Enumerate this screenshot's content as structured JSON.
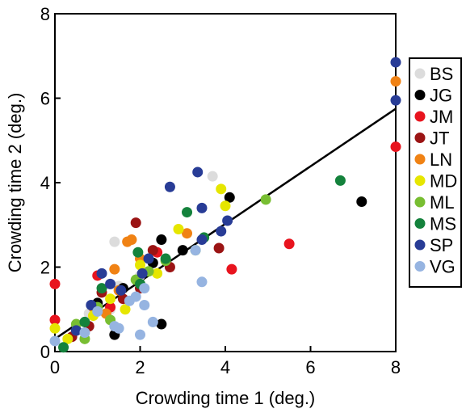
{
  "chart_data": {
    "type": "scatter",
    "xlabel": "Crowding time 1 (deg.)",
    "ylabel": "Crowding time 2 (deg.)",
    "xlim": [
      0,
      8
    ],
    "ylim": [
      0,
      8
    ],
    "xticks": [
      0,
      2,
      4,
      6,
      8
    ],
    "yticks": [
      0,
      2,
      4,
      6,
      8
    ],
    "xtick_labels": [
      "0",
      "2",
      "4",
      "6",
      "8"
    ],
    "ytick_labels": [
      "0",
      "2",
      "4",
      "6",
      "8"
    ],
    "grid": false,
    "legend_position": "right",
    "fit_line": {
      "x": [
        0,
        8
      ],
      "y": [
        0.3,
        5.75
      ]
    },
    "series": [
      {
        "name": "BS",
        "color": "#dcdcdc",
        "points": [
          [
            1.4,
            2.6
          ],
          [
            3.7,
            4.15
          ],
          [
            1.3,
            1.0
          ],
          [
            0.8,
            0.9
          ],
          [
            1.5,
            1.55
          ],
          [
            2.0,
            1.8
          ]
        ]
      },
      {
        "name": "JG",
        "color": "#000000",
        "points": [
          [
            7.2,
            3.55
          ],
          [
            4.1,
            3.65
          ],
          [
            2.5,
            2.65
          ],
          [
            2.3,
            2.1
          ],
          [
            1.6,
            1.5
          ],
          [
            1.0,
            1.15
          ],
          [
            2.5,
            0.65
          ],
          [
            1.4,
            0.4
          ],
          [
            3.0,
            2.4
          ],
          [
            0.5,
            0.5
          ]
        ]
      },
      {
        "name": "JM",
        "color": "#e8141e",
        "points": [
          [
            0.0,
            1.6
          ],
          [
            0.0,
            0.75
          ],
          [
            8.0,
            4.85
          ],
          [
            5.5,
            2.55
          ],
          [
            4.15,
            1.95
          ],
          [
            2.4,
            2.35
          ],
          [
            1.0,
            1.8
          ],
          [
            1.3,
            1.05
          ]
        ]
      },
      {
        "name": "JT",
        "color": "#9b1414",
        "points": [
          [
            1.9,
            3.05
          ],
          [
            2.3,
            2.4
          ],
          [
            3.85,
            2.45
          ],
          [
            1.6,
            1.25
          ],
          [
            0.8,
            0.6
          ],
          [
            2.7,
            2.0
          ],
          [
            1.1,
            1.4
          ],
          [
            0.4,
            0.35
          ],
          [
            2.0,
            1.5
          ]
        ]
      },
      {
        "name": "LN",
        "color": "#f08214",
        "points": [
          [
            8.0,
            6.4
          ],
          [
            1.4,
            1.95
          ],
          [
            1.8,
            2.65
          ],
          [
            1.7,
            2.6
          ],
          [
            3.1,
            2.8
          ],
          [
            1.5,
            1.45
          ],
          [
            0.9,
            1.05
          ],
          [
            2.0,
            2.2
          ],
          [
            1.2,
            0.9
          ]
        ]
      },
      {
        "name": "MD",
        "color": "#e6e600",
        "points": [
          [
            3.9,
            3.85
          ],
          [
            4.0,
            3.45
          ],
          [
            0.0,
            0.55
          ],
          [
            2.0,
            2.05
          ],
          [
            1.65,
            1.0
          ],
          [
            0.9,
            0.85
          ],
          [
            2.9,
            2.9
          ],
          [
            1.3,
            1.25
          ],
          [
            0.3,
            0.3
          ],
          [
            2.4,
            1.85
          ]
        ]
      },
      {
        "name": "ML",
        "color": "#78be32",
        "points": [
          [
            4.95,
            3.6
          ],
          [
            2.6,
            2.15
          ],
          [
            1.9,
            1.7
          ],
          [
            1.3,
            0.75
          ],
          [
            0.7,
            0.3
          ],
          [
            3.3,
            2.4
          ],
          [
            1.0,
            1.05
          ],
          [
            2.2,
            1.9
          ],
          [
            0.5,
            0.65
          ]
        ]
      },
      {
        "name": "MS",
        "color": "#14823c",
        "points": [
          [
            6.7,
            4.05
          ],
          [
            3.1,
            3.3
          ],
          [
            3.5,
            2.7
          ],
          [
            2.6,
            2.2
          ],
          [
            1.95,
            2.35
          ],
          [
            0.7,
            0.7
          ],
          [
            1.1,
            1.5
          ],
          [
            0.2,
            0.1
          ],
          [
            2.0,
            1.6
          ]
        ]
      },
      {
        "name": "SP",
        "color": "#283c96",
        "points": [
          [
            8.0,
            6.85
          ],
          [
            8.0,
            5.95
          ],
          [
            3.35,
            4.25
          ],
          [
            2.7,
            3.9
          ],
          [
            3.45,
            3.4
          ],
          [
            4.05,
            3.1
          ],
          [
            3.9,
            2.85
          ],
          [
            3.45,
            2.65
          ],
          [
            1.1,
            1.85
          ],
          [
            1.55,
            1.45
          ],
          [
            2.05,
            1.85
          ],
          [
            0.85,
            1.1
          ],
          [
            0.5,
            0.5
          ],
          [
            2.2,
            2.2
          ],
          [
            1.3,
            1.6
          ]
        ]
      },
      {
        "name": "VG",
        "color": "#96b4e1",
        "points": [
          [
            3.45,
            1.65
          ],
          [
            3.3,
            2.4
          ],
          [
            2.1,
            1.5
          ],
          [
            1.9,
            1.3
          ],
          [
            2.0,
            0.4
          ],
          [
            2.3,
            0.7
          ],
          [
            1.4,
            0.6
          ],
          [
            0.7,
            0.45
          ],
          [
            0.0,
            0.25
          ],
          [
            1.0,
            0.95
          ],
          [
            1.5,
            0.55
          ],
          [
            2.1,
            1.1
          ],
          [
            1.75,
            1.2
          ]
        ]
      }
    ]
  }
}
